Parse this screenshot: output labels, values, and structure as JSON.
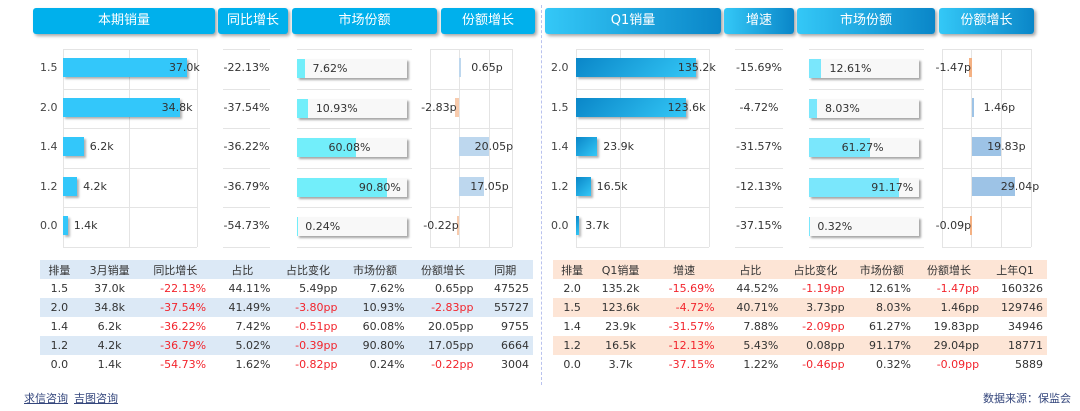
{
  "left": {
    "headers": [
      "本期销量",
      "同比增长",
      "市场份额",
      "份额增长"
    ],
    "categories": [
      "1.5",
      "2.0",
      "1.4",
      "1.2",
      "0.0"
    ],
    "sales": {
      "values": [
        37.0,
        34.8,
        6.2,
        4.2,
        1.4
      ],
      "labels": [
        "37.0k",
        "34.8k",
        "6.2k",
        "4.2k",
        "1.4k"
      ],
      "axis_max": 40,
      "color": "#33c7fa"
    },
    "growth": [
      "-22.13%",
      "-37.54%",
      "-36.22%",
      "-36.79%",
      "-54.73%"
    ],
    "share": {
      "values": [
        7.62,
        10.93,
        60.08,
        90.8,
        0.24
      ],
      "labels": [
        "7.62%",
        "10.93%",
        "60.08%",
        "90.80%",
        "0.24%"
      ],
      "color": "#72eefa"
    },
    "share_change": {
      "values": [
        0.65,
        -2.83,
        20.05,
        17.05,
        -0.22
      ],
      "labels": [
        "0.65p",
        "-2.83p",
        "20.05p",
        "17.05p",
        "-0.22p"
      ],
      "axis": [
        -20,
        36
      ],
      "pos_color": "#bdd7ee",
      "neg_color": "#f8cbad"
    },
    "table": {
      "columns": [
        "排量",
        "3月销量",
        "同比增长",
        "占比",
        "占比变化",
        "市场份额",
        "份额增长",
        "同期"
      ],
      "rows": [
        [
          "1.5",
          "37.0k",
          "-22.13%",
          "44.11%",
          "5.49pp",
          "7.62%",
          "0.65pp",
          "47525"
        ],
        [
          "2.0",
          "34.8k",
          "-37.54%",
          "41.49%",
          "-3.80pp",
          "10.93%",
          "-2.83pp",
          "55727"
        ],
        [
          "1.4",
          "6.2k",
          "-36.22%",
          "7.42%",
          "-0.51pp",
          "60.08%",
          "20.05pp",
          "9755"
        ],
        [
          "1.2",
          "4.2k",
          "-36.79%",
          "5.02%",
          "-0.39pp",
          "90.80%",
          "17.05pp",
          "6664"
        ],
        [
          "0.0",
          "1.4k",
          "-54.73%",
          "1.62%",
          "-0.82pp",
          "0.24%",
          "-0.22pp",
          "3004"
        ]
      ],
      "header_bg": "#dce9f6",
      "stripe_bg": "#dce9f6"
    }
  },
  "right": {
    "headers": [
      "Q1销量",
      "增速",
      "市场份额",
      "份额增长"
    ],
    "categories": [
      "2.0",
      "1.5",
      "1.4",
      "1.2",
      "0.0"
    ],
    "sales": {
      "values": [
        135.2,
        123.6,
        23.9,
        16.5,
        3.7
      ],
      "labels": [
        "135.2k",
        "123.6k",
        "23.9k",
        "16.5k",
        "3.7k"
      ],
      "axis_max": 150,
      "color": "#0a86c8"
    },
    "growth": [
      "-15.69%",
      "-4.72%",
      "-31.57%",
      "-12.13%",
      "-37.15%"
    ],
    "share": {
      "values": [
        12.61,
        8.03,
        61.27,
        91.17,
        0.32
      ],
      "labels": [
        "12.61%",
        "8.03%",
        "61.27%",
        "91.17%",
        "0.32%"
      ],
      "color": "#7ae7fc"
    },
    "share_change": {
      "values": [
        -1.47,
        1.46,
        19.83,
        29.04,
        -0.09
      ],
      "labels": [
        "-1.47p",
        "1.46p",
        "19.83p",
        "29.04p",
        "-0.09p"
      ],
      "axis": [
        -20,
        40
      ],
      "pos_color": "#9dc3e6",
      "neg_color": "#f4b183"
    },
    "table": {
      "columns": [
        "排量",
        "Q1销量",
        "增速",
        "占比",
        "占比变化",
        "市场份额",
        "份额增长",
        "上年Q1"
      ],
      "rows": [
        [
          "2.0",
          "135.2k",
          "-15.69%",
          "44.52%",
          "-1.19pp",
          "12.61%",
          "-1.47pp",
          "160326"
        ],
        [
          "1.5",
          "123.6k",
          "-4.72%",
          "40.71%",
          "3.73pp",
          "8.03%",
          "1.46pp",
          "129746"
        ],
        [
          "1.4",
          "23.9k",
          "-31.57%",
          "7.88%",
          "-2.09pp",
          "61.27%",
          "19.83pp",
          "34946"
        ],
        [
          "1.2",
          "16.5k",
          "-12.13%",
          "5.43%",
          "0.08pp",
          "91.17%",
          "29.04pp",
          "18771"
        ],
        [
          "0.0",
          "3.7k",
          "-37.15%",
          "1.22%",
          "-0.46pp",
          "0.32%",
          "-0.09pp",
          "5889"
        ]
      ],
      "header_bg": "#fde5d6",
      "stripe_bg": "#fde5d6"
    }
  },
  "footer": {
    "links": [
      "求信咨询",
      "吉图咨询"
    ],
    "source": "数据来源：保监会"
  },
  "chart_data": [
    {
      "type": "bar",
      "categories": [
        "1.5",
        "2.0",
        "1.4",
        "1.2",
        "0.0"
      ],
      "series": [
        {
          "name": "本期销量",
          "values": [
            37.0,
            34.8,
            6.2,
            4.2,
            1.4
          ]
        },
        {
          "name": "市场份额",
          "values": [
            7.62,
            10.93,
            60.08,
            90.8,
            0.24
          ]
        },
        {
          "name": "份额增长",
          "values": [
            0.65,
            -2.83,
            20.05,
            17.05,
            -0.22
          ]
        }
      ]
    },
    {
      "type": "bar",
      "categories": [
        "2.0",
        "1.5",
        "1.4",
        "1.2",
        "0.0"
      ],
      "series": [
        {
          "name": "Q1销量",
          "values": [
            135.2,
            123.6,
            23.9,
            16.5,
            3.7
          ]
        },
        {
          "name": "市场份额",
          "values": [
            12.61,
            8.03,
            61.27,
            91.17,
            0.32
          ]
        },
        {
          "name": "份额增长",
          "values": [
            -1.47,
            1.46,
            19.83,
            29.04,
            -0.09
          ]
        }
      ]
    }
  ]
}
